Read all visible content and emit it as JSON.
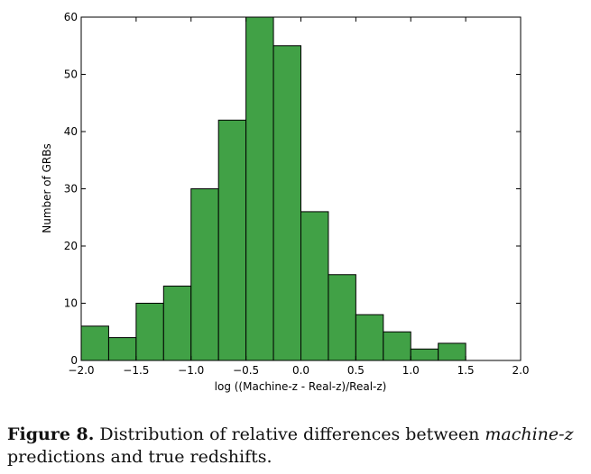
{
  "chart_data": {
    "type": "bar",
    "histogram": true,
    "bins": [
      {
        "x0": -2.0,
        "x1": -1.75,
        "count": 6
      },
      {
        "x0": -1.75,
        "x1": -1.5,
        "count": 4
      },
      {
        "x0": -1.5,
        "x1": -1.25,
        "count": 10
      },
      {
        "x0": -1.25,
        "x1": -1.0,
        "count": 13
      },
      {
        "x0": -1.0,
        "x1": -0.75,
        "count": 30
      },
      {
        "x0": -0.75,
        "x1": -0.5,
        "count": 42
      },
      {
        "x0": -0.5,
        "x1": -0.25,
        "count": 60
      },
      {
        "x0": -0.25,
        "x1": 0.0,
        "count": 55
      },
      {
        "x0": 0.0,
        "x1": 0.25,
        "count": 26
      },
      {
        "x0": 0.25,
        "x1": 0.5,
        "count": 15
      },
      {
        "x0": 0.5,
        "x1": 0.75,
        "count": 8
      },
      {
        "x0": 0.75,
        "x1": 1.0,
        "count": 5
      },
      {
        "x0": 1.0,
        "x1": 1.25,
        "count": 2
      },
      {
        "x0": 1.25,
        "x1": 1.5,
        "count": 3
      }
    ],
    "xlabel": "log ((Machine-z - Real-z)/Real-z)",
    "ylabel": "Number of GRBs",
    "xlim": [
      -2.0,
      2.0
    ],
    "ylim": [
      0,
      60
    ],
    "xticks": [
      -2.0,
      -1.5,
      -1.0,
      -0.5,
      0.0,
      0.5,
      1.0,
      1.5,
      2.0
    ],
    "xtick_labels": [
      "−2.0",
      "−1.5",
      "−1.0",
      "−0.5",
      "0.0",
      "0.5",
      "1.0",
      "1.5",
      "2.0"
    ],
    "yticks": [
      0,
      10,
      20,
      30,
      40,
      50,
      60
    ],
    "ytick_labels": [
      "0",
      "10",
      "20",
      "30",
      "40",
      "50",
      "60"
    ],
    "bar_color": "#41a146",
    "edge_color": "#000000",
    "grid": false
  },
  "caption": {
    "label": "Figure 8.",
    "text_before": " Distribution of relative differences between ",
    "emphasis": "machine-z",
    "text_after": " predictions and true redshifts."
  }
}
